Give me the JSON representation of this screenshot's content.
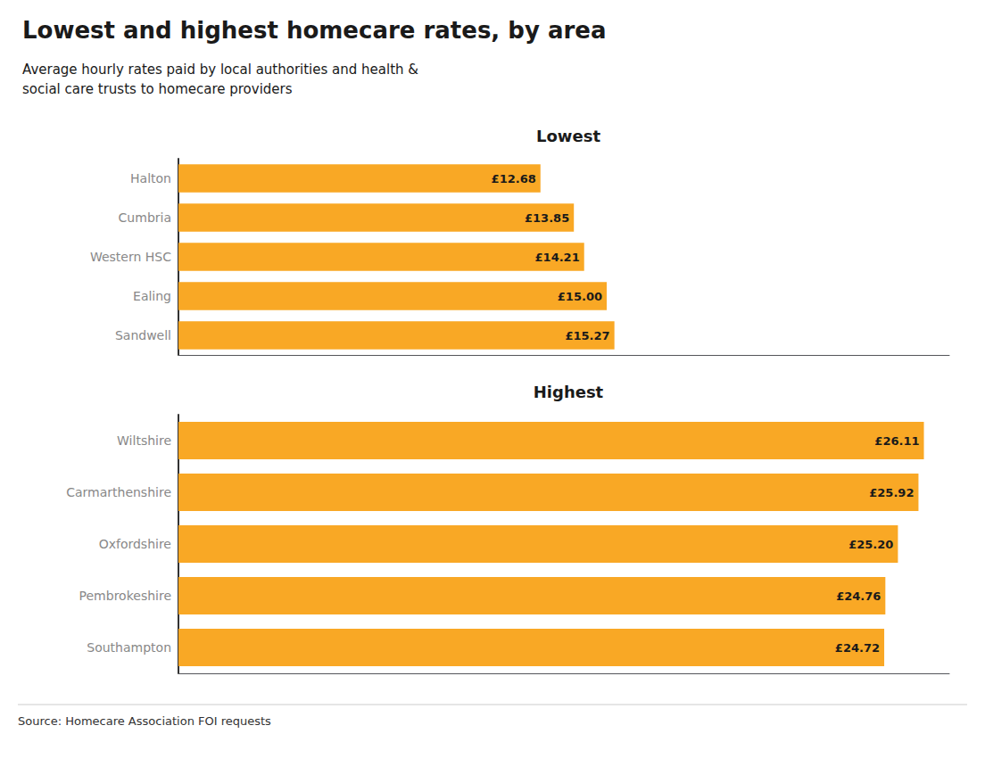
{
  "title": "Lowest and highest homecare rates, by area",
  "subtitle": "Average hourly rates paid by local authorities and health &\nsocial care trusts to homecare providers",
  "annotations": [
    "Source: Homecare Association FOI requests"
  ],
  "chart_data": [
    {
      "type": "bar",
      "orientation": "horizontal",
      "title": "Lowest",
      "categories": [
        "Halton",
        "Cumbria",
        "Western HSC",
        "Ealing",
        "Sandwell"
      ],
      "values": [
        12.68,
        13.85,
        14.21,
        15.0,
        15.27
      ],
      "value_labels": [
        "£12.68",
        "£13.85",
        "£14.21",
        "£15.00",
        "£15.27"
      ],
      "data_labels": true,
      "color": "#F9A825",
      "xlim": [
        0,
        27
      ],
      "tick_labels": "y",
      "grid": false
    },
    {
      "type": "bar",
      "orientation": "horizontal",
      "title": "Highest",
      "categories": [
        "Wiltshire",
        "Carmarthenshire",
        "Oxfordshire",
        "Pembrokeshire",
        "Southampton"
      ],
      "values": [
        26.11,
        25.92,
        25.2,
        24.76,
        24.72
      ],
      "value_labels": [
        "£26.11",
        "£25.92",
        "£25.20",
        "£24.76",
        "£24.72"
      ],
      "data_labels": true,
      "color": "#F9A825",
      "xlim": [
        0,
        27
      ],
      "tick_labels": "y",
      "grid": false
    }
  ]
}
